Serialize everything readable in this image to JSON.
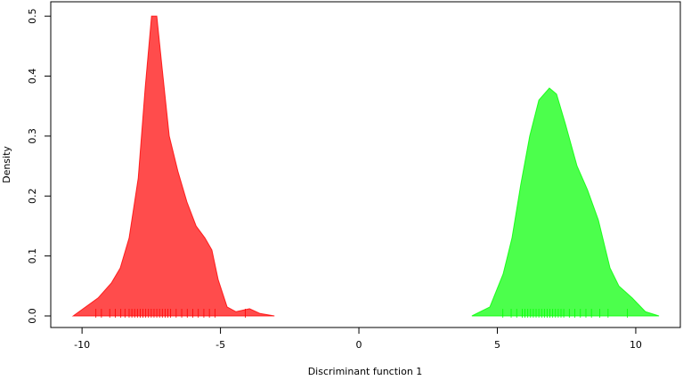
{
  "chart_data": {
    "type": "area",
    "x_label": "Discriminant function 1",
    "y_label": "Density",
    "xlim": [
      -11.13,
      11.61
    ],
    "ylim": [
      -0.0193,
      0.524
    ],
    "xticks": [
      -10,
      -5,
      0,
      5,
      10
    ],
    "yticks": [
      {
        "value": 0,
        "label": "0.0"
      },
      0.1,
      0.2,
      0.3,
      0.4,
      0.5
    ],
    "series": [
      {
        "color": "#ff0000",
        "x": [
          -10.32,
          -9.42,
          -8.94,
          -8.62,
          -8.3,
          -7.97,
          -7.72,
          -7.49,
          -7.3,
          -7.1,
          -6.85,
          -6.53,
          -6.21,
          -5.88,
          -5.56,
          -5.31,
          -5.08,
          -4.76,
          -4.44,
          -3.95,
          -3.57,
          -3.05
        ],
        "values": [
          0,
          0.03,
          0.055,
          0.08,
          0.13,
          0.23,
          0.38,
          0.5,
          0.5,
          0.41,
          0.3,
          0.24,
          0.19,
          0.15,
          0.13,
          0.11,
          0.06,
          0.015,
          0.007,
          0.012,
          0.004,
          0
        ],
        "rug": [
          -9.5,
          -9.3,
          -9.0,
          -8.8,
          -8.6,
          -8.45,
          -8.3,
          -8.2,
          -8.1,
          -8.0,
          -7.9,
          -7.8,
          -7.7,
          -7.6,
          -7.5,
          -7.4,
          -7.3,
          -7.2,
          -7.1,
          -7.0,
          -6.9,
          -6.8,
          -6.6,
          -6.4,
          -6.2,
          -6.0,
          -5.8,
          -5.6,
          -5.4,
          -5.2,
          -4.1
        ]
      },
      {
        "color": "#00ff00",
        "x": [
          4.08,
          4.73,
          5.21,
          5.53,
          5.85,
          6.17,
          6.5,
          6.88,
          7.14,
          7.46,
          7.88,
          8.26,
          8.65,
          9.07,
          9.39,
          9.87,
          10.35,
          10.84
        ],
        "values": [
          0,
          0.015,
          0.07,
          0.13,
          0.22,
          0.3,
          0.36,
          0.38,
          0.37,
          0.32,
          0.25,
          0.21,
          0.16,
          0.08,
          0.05,
          0.03,
          0.007,
          0
        ],
        "rug": [
          5.2,
          5.5,
          5.7,
          5.9,
          6.0,
          6.1,
          6.2,
          6.3,
          6.4,
          6.5,
          6.6,
          6.7,
          6.8,
          6.9,
          7.0,
          7.1,
          7.2,
          7.3,
          7.4,
          7.6,
          7.8,
          8.0,
          8.2,
          8.4,
          8.7,
          9.0,
          9.7
        ]
      }
    ]
  }
}
